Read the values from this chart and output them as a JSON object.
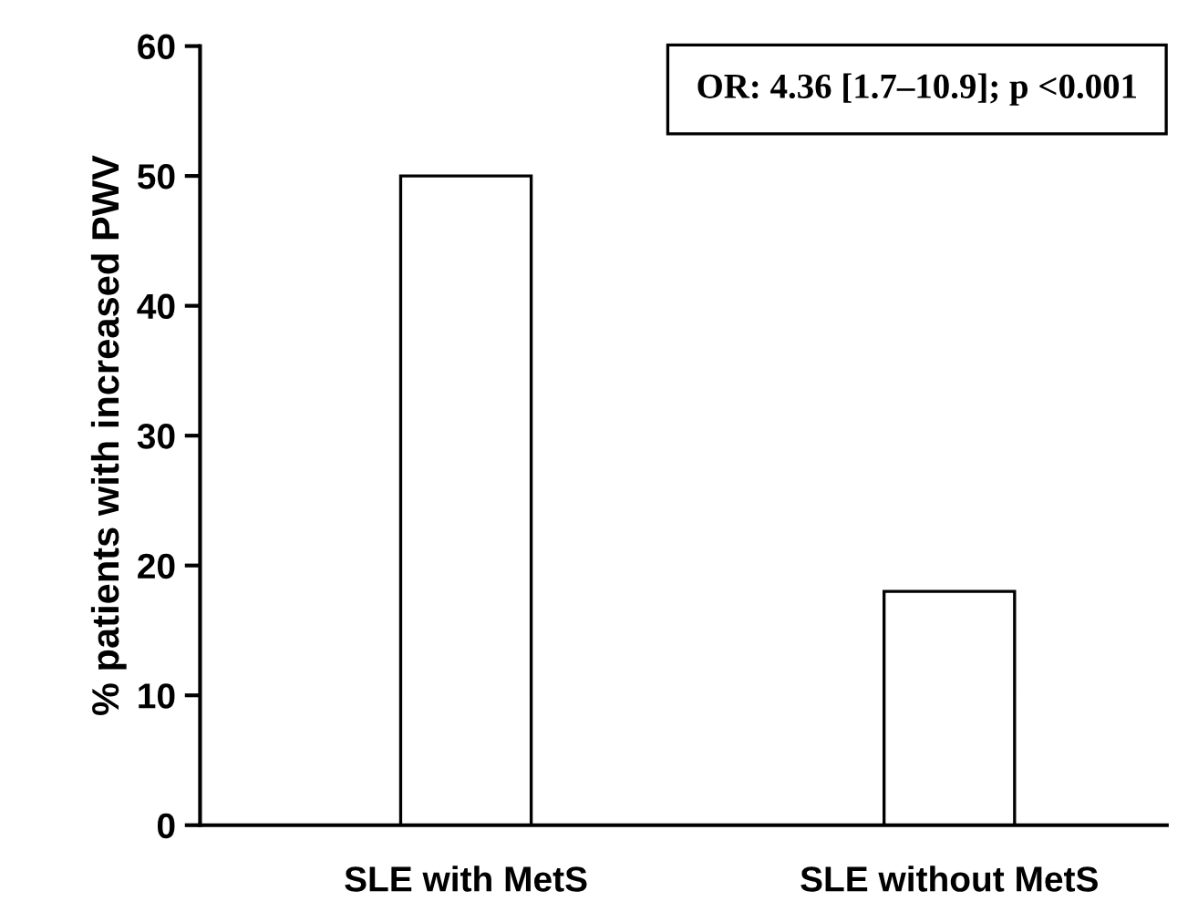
{
  "chart_data": {
    "type": "bar",
    "categories": [
      "SLE with MetS",
      "SLE without MetS"
    ],
    "values": [
      50,
      18
    ],
    "color": "#ffffff",
    "ylabel": "% patients with increased PWV",
    "ylim": [
      0,
      60
    ],
    "yticks": [
      0,
      10,
      20,
      30,
      40,
      50,
      60
    ],
    "grid": false,
    "legend": false,
    "annotations": [
      "OR: 4.36 [1.7–10.9]; p <0.001"
    ]
  }
}
